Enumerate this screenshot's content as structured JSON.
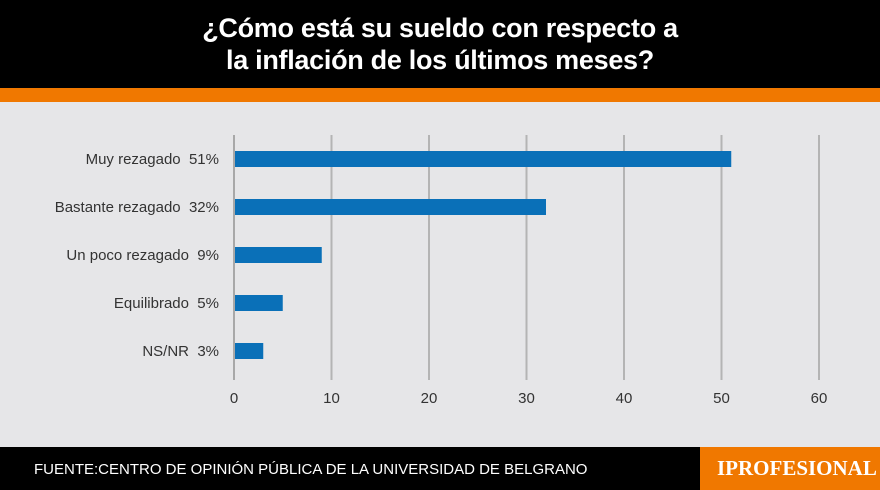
{
  "title_lines": [
    "¿Cómo está su sueldo con respecto a",
    "la inflación de los últimos meses?"
  ],
  "footer": {
    "source": "FUENTE:CENTRO DE OPINIÓN PÚBLICA DE LA UNIVERSIDAD DE BELGRANO",
    "logo": "IPROFESIONAL"
  },
  "colors": {
    "bar": "#0a70b8",
    "header": "#000000",
    "accent": "#f07800",
    "background": "#e6e6e8"
  },
  "chart_data": {
    "type": "bar",
    "orientation": "horizontal",
    "categories": [
      "Muy rezagado  51%",
      "Bastante rezagado  32%",
      "Un poco rezagado  9%",
      "Equilibrado  5%",
      "NS/NR  3%"
    ],
    "values": [
      51,
      32,
      9,
      5,
      3
    ],
    "xlim": [
      0,
      60
    ],
    "xticks": [
      "0",
      "10",
      "20",
      "30",
      "40",
      "50",
      "60"
    ],
    "grid": true
  }
}
